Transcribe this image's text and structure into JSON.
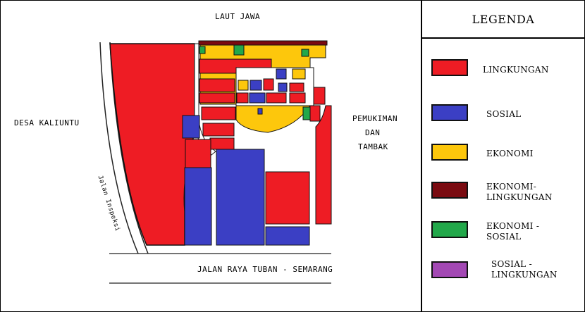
{
  "map": {
    "labels": {
      "north": "LAUT JAWA",
      "west": "DESA KALIUNTU",
      "east_line1": "PEMUKIMAN",
      "east_line2": "DAN",
      "east_line3": "TAMBAK",
      "south": "JALAN RAYA TUBAN - SEMARANG",
      "road": "Jalan Inspeksi"
    }
  },
  "legend": {
    "title": "LEGENDA",
    "items": [
      {
        "label": "LINGKUNGAN",
        "color": "#ee1c24"
      },
      {
        "label": "SOSIAL",
        "color": "#3b3fc4"
      },
      {
        "label": "EKONOMI",
        "color": "#fdc70c"
      },
      {
        "label": "EKONOMI-\nLINGKUNGAN",
        "color": "#7a0a10"
      },
      {
        "label": "EKONOMI -\nSOSIAL",
        "color": "#22a84a"
      },
      {
        "label": "SOSIAL -\nLINGKUNGAN",
        "color": "#a348b4"
      }
    ]
  },
  "colors": {
    "red": "#ee1c24",
    "blue": "#3b3fc4",
    "yellow": "#fdc70c",
    "darkred": "#7a0a10",
    "green": "#22a84a",
    "purple": "#a348b4",
    "outline": "#111111"
  }
}
